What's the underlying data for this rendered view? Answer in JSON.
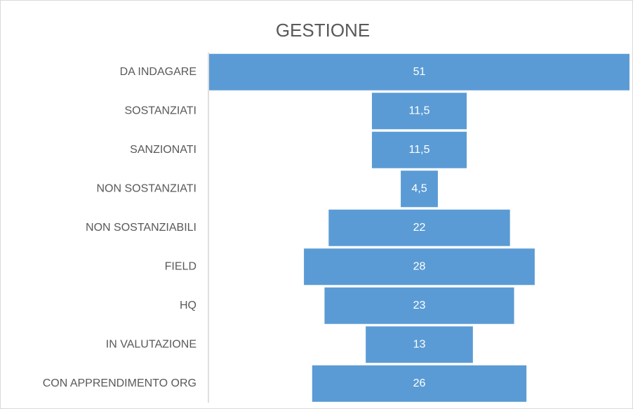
{
  "chart_data": {
    "type": "funnel",
    "title": "GESTIONE",
    "categories": [
      "DA INDAGARE",
      "SOSTANZIATI",
      "SANZIONATI",
      "NON SOSTANZIATI",
      "NON SOSTANZIABILI",
      "FIELD",
      "HQ",
      "IN VALUTAZIONE",
      "CON APPRENDIMENTO ORG"
    ],
    "values": [
      51,
      11.5,
      11.5,
      4.5,
      22,
      28,
      23,
      13,
      26
    ],
    "value_labels": [
      "51",
      "11,5",
      "11,5",
      "4,5",
      "22",
      "28",
      "23",
      "13",
      "26"
    ],
    "color": "#5b9bd5"
  }
}
